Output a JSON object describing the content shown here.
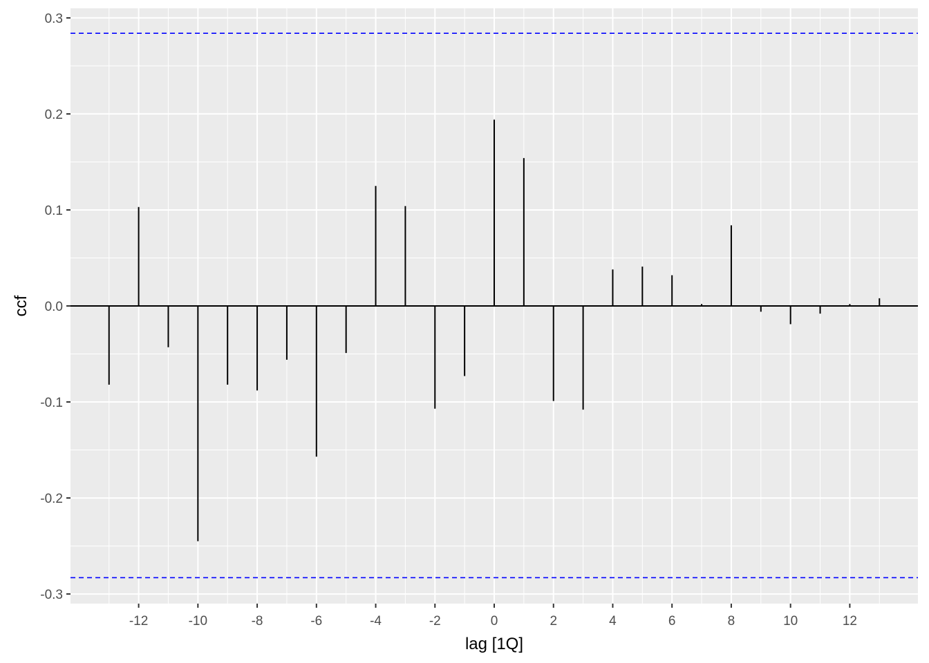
{
  "chart_data": {
    "type": "bar",
    "subtype": "correlogram",
    "title": "",
    "xlabel": "lag [1Q]",
    "ylabel": "ccf",
    "xlim": [
      -14.3,
      14.3
    ],
    "ylim": [
      -0.31,
      0.31
    ],
    "x_ticks": [
      -12,
      -10,
      -8,
      -6,
      -4,
      -2,
      0,
      2,
      4,
      6,
      8,
      10,
      12
    ],
    "y_ticks": [
      -0.3,
      -0.2,
      -0.1,
      0.0,
      0.1,
      0.2,
      0.3
    ],
    "y_tick_labels": [
      "-0.3",
      "-0.2",
      "-0.1",
      "0.0",
      "0.1",
      "0.2",
      "0.3"
    ],
    "x": [
      -13,
      -12,
      -11,
      -10,
      -9,
      -8,
      -7,
      -6,
      -5,
      -4,
      -3,
      -2,
      -1,
      0,
      1,
      2,
      3,
      4,
      5,
      6,
      7,
      8,
      9,
      10,
      11,
      12,
      13
    ],
    "values": [
      -0.082,
      0.103,
      -0.043,
      -0.245,
      -0.082,
      -0.088,
      -0.056,
      -0.157,
      -0.049,
      0.125,
      0.104,
      -0.107,
      -0.073,
      0.194,
      0.154,
      -0.099,
      -0.108,
      0.038,
      0.041,
      0.032,
      0.002,
      0.084,
      -0.006,
      -0.019,
      -0.008,
      0.002,
      0.008
    ],
    "confidence_bounds": [
      0.284,
      -0.283
    ],
    "grid": true,
    "colors": {
      "panel": "#ebebeb",
      "grid": "#ffffff",
      "bar": "#000000",
      "bound": "#0000ff"
    }
  }
}
